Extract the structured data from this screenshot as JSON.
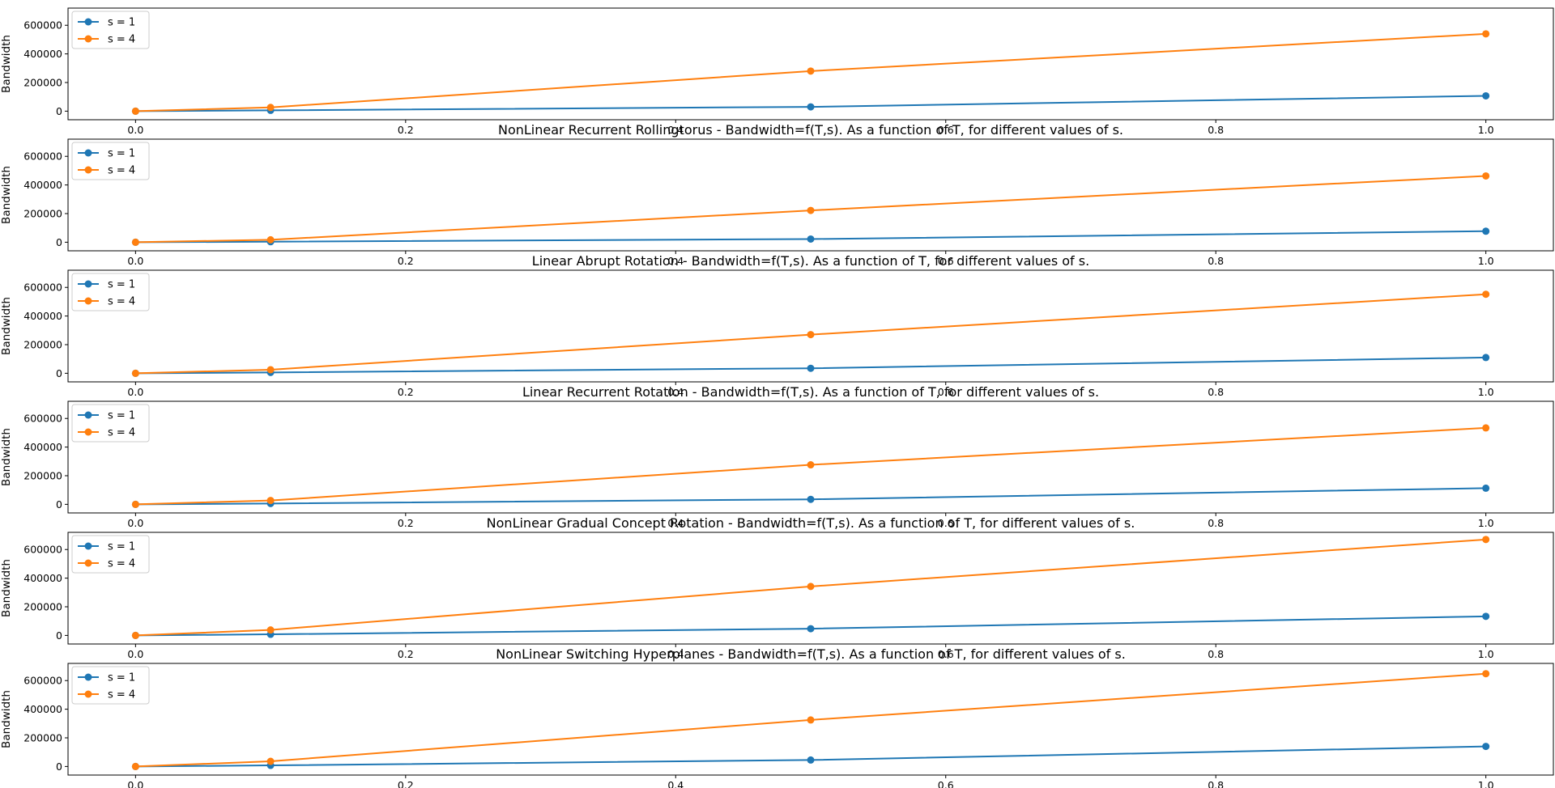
{
  "colors": {
    "s1": "#1f77b4",
    "s4": "#ff7f0e"
  },
  "chart_data": [
    {
      "type": "line",
      "title": "",
      "xlabel": "",
      "ylabel": "Bandwidth",
      "x": [
        0.0,
        0.1,
        0.5,
        1.0
      ],
      "xlim": [
        -0.05,
        1.05
      ],
      "ylim": [
        -60000,
        720000
      ],
      "xticks": [
        "0.0",
        "0.2",
        "0.4",
        "0.6",
        "0.8",
        "1.0"
      ],
      "yticks": [
        "0",
        "200000",
        "400000",
        "600000"
      ],
      "legend": "upper-left",
      "series": [
        {
          "name": "s = 1",
          "values": [
            0,
            5400,
            30000,
            107000
          ]
        },
        {
          "name": "s = 4",
          "values": [
            0,
            26000,
            280000,
            540000
          ]
        }
      ]
    },
    {
      "type": "line",
      "title": "NonLinear Recurrent Rollingtorus - Bandwidth=f(T,s). As a function of T, for different values of s.",
      "xlabel": "",
      "ylabel": "Bandwidth",
      "x": [
        0.0,
        0.1,
        0.5,
        1.0
      ],
      "xlim": [
        -0.05,
        1.05
      ],
      "ylim": [
        -60000,
        720000
      ],
      "xticks": [
        "0.0",
        "0.2",
        "0.4",
        "0.6",
        "0.8",
        "1.0"
      ],
      "yticks": [
        "0",
        "200000",
        "400000",
        "600000"
      ],
      "legend": "upper-left",
      "series": [
        {
          "name": "s = 1",
          "values": [
            0,
            3500,
            22000,
            77000
          ]
        },
        {
          "name": "s = 4",
          "values": [
            0,
            17000,
            222000,
            463000
          ]
        }
      ]
    },
    {
      "type": "line",
      "title": "Linear Abrupt Rotation - Bandwidth=f(T,s). As a function of T, for different values of s.",
      "xlabel": "",
      "ylabel": "Bandwidth",
      "x": [
        0.0,
        0.1,
        0.5,
        1.0
      ],
      "xlim": [
        -0.05,
        1.05
      ],
      "ylim": [
        -60000,
        720000
      ],
      "xticks": [
        "0.0",
        "0.2",
        "0.4",
        "0.6",
        "0.8",
        "1.0"
      ],
      "yticks": [
        "0",
        "200000",
        "400000",
        "600000"
      ],
      "legend": "upper-left",
      "series": [
        {
          "name": "s = 1",
          "values": [
            0,
            5800,
            35000,
            110000
          ]
        },
        {
          "name": "s = 4",
          "values": [
            0,
            25000,
            270000,
            552000
          ]
        }
      ]
    },
    {
      "type": "line",
      "title": "Linear Recurrent Rotation - Bandwidth=f(T,s). As a function of T, for different values of s.",
      "xlabel": "",
      "ylabel": "Bandwidth",
      "x": [
        0.0,
        0.1,
        0.5,
        1.0
      ],
      "xlim": [
        -0.05,
        1.05
      ],
      "ylim": [
        -60000,
        720000
      ],
      "xticks": [
        "0.0",
        "0.2",
        "0.4",
        "0.6",
        "0.8",
        "1.0"
      ],
      "yticks": [
        "0",
        "200000",
        "400000",
        "600000"
      ],
      "legend": "upper-left",
      "series": [
        {
          "name": "s = 1",
          "values": [
            0,
            6000,
            35000,
            113000
          ]
        },
        {
          "name": "s = 4",
          "values": [
            0,
            27000,
            276000,
            534000
          ]
        }
      ]
    },
    {
      "type": "line",
      "title": "NonLinear Gradual Concept Rotation - Bandwidth=f(T,s). As a function of T, for different values of s.",
      "xlabel": "",
      "ylabel": "Bandwidth",
      "x": [
        0.0,
        0.1,
        0.5,
        1.0
      ],
      "xlim": [
        -0.05,
        1.05
      ],
      "ylim": [
        -60000,
        720000
      ],
      "xticks": [
        "0.0",
        "0.2",
        "0.4",
        "0.6",
        "0.8",
        "1.0"
      ],
      "yticks": [
        "0",
        "200000",
        "400000",
        "600000"
      ],
      "legend": "upper-left",
      "series": [
        {
          "name": "s = 1",
          "values": [
            0,
            7500,
            47000,
            133000
          ]
        },
        {
          "name": "s = 4",
          "values": [
            0,
            38000,
            342000,
            670000
          ]
        }
      ]
    },
    {
      "type": "line",
      "title": "NonLinear Switching Hyperplanes - Bandwidth=f(T,s). As a function of T, for different values of s.",
      "xlabel": "",
      "ylabel": "Bandwidth",
      "x": [
        0.0,
        0.1,
        0.5,
        1.0
      ],
      "xlim": [
        -0.05,
        1.05
      ],
      "ylim": [
        -60000,
        720000
      ],
      "xticks": [
        "0.0",
        "0.2",
        "0.4",
        "0.6",
        "0.8",
        "1.0"
      ],
      "yticks": [
        "0",
        "200000",
        "400000",
        "600000"
      ],
      "legend": "upper-left",
      "series": [
        {
          "name": "s = 1",
          "values": [
            0,
            7500,
            45000,
            140000
          ]
        },
        {
          "name": "s = 4",
          "values": [
            0,
            36000,
            325000,
            648000
          ]
        }
      ]
    }
  ]
}
